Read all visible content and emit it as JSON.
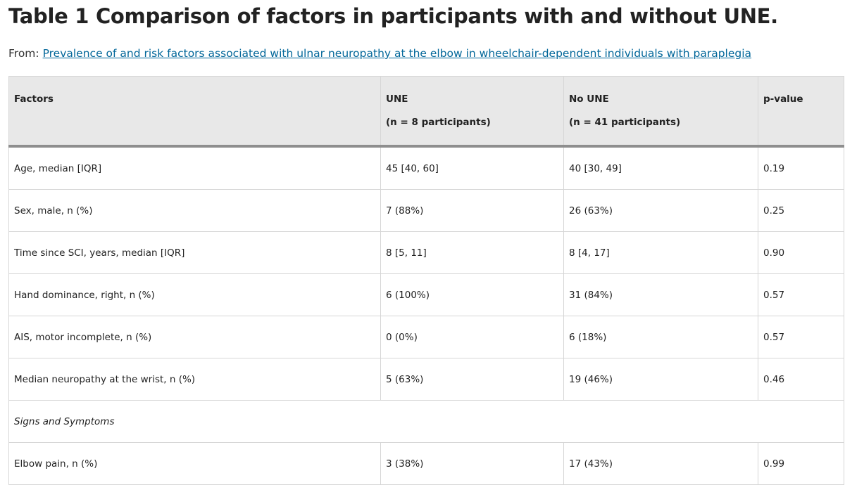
{
  "title": "Table 1 Comparison of factors in participants with and without UNE.",
  "source": {
    "prefix": "From: ",
    "link_text": "Prevalence of and risk factors associated with ulnar neuropathy at the elbow in wheelchair-dependent individuals with paraplegia"
  },
  "table": {
    "headers": {
      "factors": "Factors",
      "une": "UNE",
      "une_n": "(n = 8 participants)",
      "no_une": "No UNE",
      "no_une_n": "(n = 41 participants)",
      "pvalue": "p-value"
    },
    "rows": [
      {
        "factor": "Age, median [IQR]",
        "une": "45 [40, 60]",
        "no_une": "40 [30, 49]",
        "p": "0.19"
      },
      {
        "factor": "Sex, male, n (%)",
        "une": "7 (88%)",
        "no_une": "26 (63%)",
        "p": "0.25"
      },
      {
        "factor": "Time since SCI, years, median [IQR]",
        "une": "8 [5, 11]",
        "no_une": "8 [4, 17]",
        "p": "0.90"
      },
      {
        "factor": "Hand dominance, right, n (%)",
        "une": "6 (100%)",
        "no_une": "31 (84%)",
        "p": "0.57"
      },
      {
        "factor": "AIS, motor incomplete, n (%)",
        "une": "0 (0%)",
        "no_une": "6 (18%)",
        "p": "0.57"
      },
      {
        "factor": "Median neuropathy at the wrist, n (%)",
        "une": "5 (63%)",
        "no_une": "19 (46%)",
        "p": "0.46"
      }
    ],
    "section": "Signs and Symptoms",
    "rows2": [
      {
        "factor": "Elbow pain, n (%)",
        "une": "3 (38%)",
        "no_une": "17 (43%)",
        "p": "0.99"
      }
    ]
  },
  "colors": {
    "link": "#006699",
    "header_bg": "#e8e8e8",
    "header_rule": "#8e8e8e",
    "grid": "#d6d6d6"
  }
}
